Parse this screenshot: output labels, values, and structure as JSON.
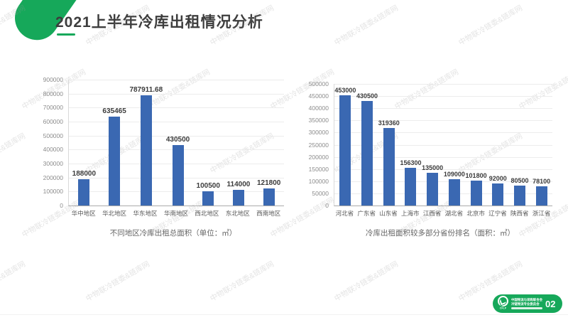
{
  "slide": {
    "title": "2021上半年冷库出租情况分析",
    "page_number": "02",
    "watermark_text": "中物联冷链委&链库网",
    "accent_green": "#16a85a",
    "bar_blue": "#3a68b2"
  },
  "footer_logo": {
    "org_line1": "中国物流与采购联合会",
    "org_line2": "冷链物流专业委员会",
    "abbr": "CFLP"
  },
  "chart_data": [
    {
      "type": "bar",
      "title": "不同地区冷库出租总面积（单位：㎡）",
      "categories": [
        "华中地区",
        "华北地区",
        "华东地区",
        "华南地区",
        "西北地区",
        "东北地区",
        "西南地区"
      ],
      "values": [
        188000,
        635465,
        787911.68,
        430500,
        100500,
        114000,
        121800
      ],
      "value_labels": [
        "188000",
        "635465",
        "787911.68",
        "430500",
        "100500",
        "114000",
        "121800"
      ],
      "xlabel": "",
      "ylabel": "",
      "ylim": [
        0,
        900000
      ],
      "ytick_step": 100000,
      "grid": true,
      "legend": "none",
      "bar_color": "#3a68b2"
    },
    {
      "type": "bar",
      "title": "冷库出租面积较多部分省份排名（面积：㎡）",
      "categories": [
        "河北省",
        "广东省",
        "山东省",
        "上海市",
        "江西省",
        "湖北省",
        "北京市",
        "辽宁省",
        "陕西省",
        "浙江省"
      ],
      "values": [
        453000,
        430500,
        319360,
        156300,
        135000,
        109000,
        101800,
        92000,
        80500,
        78100
      ],
      "value_labels": [
        "453000",
        "430500",
        "319360",
        "156300",
        "135000",
        "109000",
        "101800",
        "92000",
        "80500",
        "78100"
      ],
      "xlabel": "",
      "ylabel": "",
      "ylim": [
        0,
        500000
      ],
      "ytick_step": 50000,
      "grid": true,
      "legend": "none",
      "bar_color": "#3a68b2"
    }
  ]
}
